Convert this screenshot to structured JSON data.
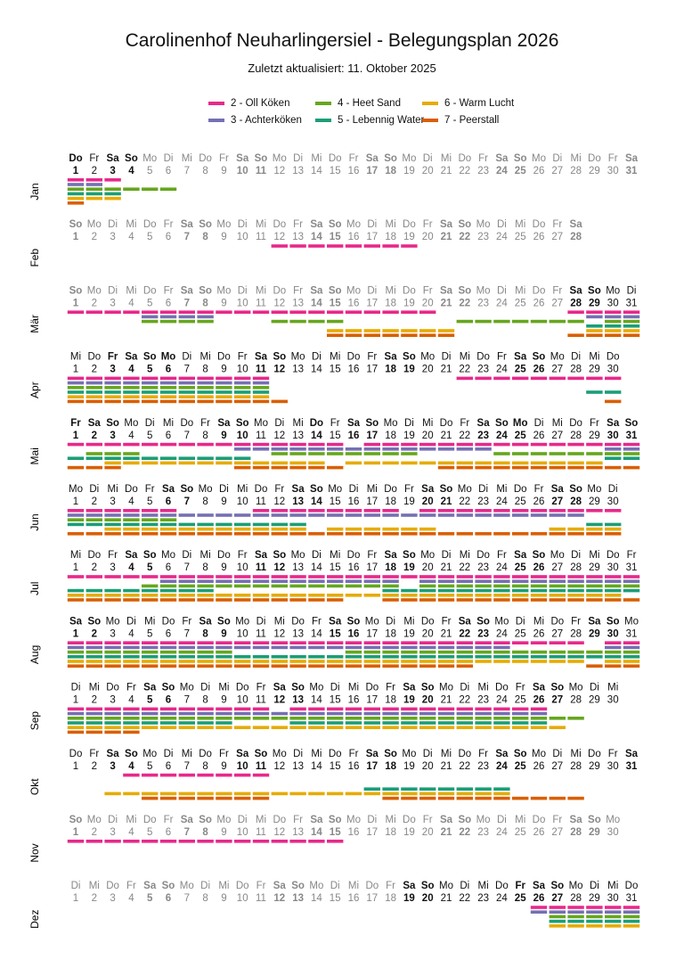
{
  "title": "Carolinenhof Neuharlingersiel - Belegungsplan 2026",
  "subtitle": "Zuletzt aktualisiert: 11. Oktober 2025",
  "chart_data": {
    "type": "gantt",
    "year": 2026,
    "weekdays": [
      "So",
      "Mo",
      "Di",
      "Mi",
      "Do",
      "Fr",
      "Sa"
    ],
    "units": [
      {
        "id": "2",
        "name": "2 - Oll Köken",
        "color": "#e7298a"
      },
      {
        "id": "3",
        "name": "3 - Achterköken",
        "color": "#7570b3"
      },
      {
        "id": "4",
        "name": "4 - Heet Sand",
        "color": "#66a61e"
      },
      {
        "id": "5",
        "name": "5 - Lebennig Water",
        "color": "#1b9e77"
      },
      {
        "id": "6",
        "name": "6 - Warm Lucht",
        "color": "#e6ab02"
      },
      {
        "id": "7",
        "name": "7 - Peerstall",
        "color": "#d95f02"
      }
    ],
    "holidays": [
      [
        1,
        1
      ],
      [
        4,
        3
      ],
      [
        4,
        6
      ],
      [
        5,
        1
      ],
      [
        5,
        14
      ],
      [
        5,
        25
      ],
      [
        12,
        25
      ]
    ],
    "months": [
      {
        "label": "Jan",
        "days": 31,
        "dark_days": [
          [
            1,
            4
          ]
        ],
        "occupied": {
          "2": [
            [
              1,
              3
            ]
          ],
          "3": [
            [
              1,
              2
            ]
          ],
          "4": [
            [
              1,
              6
            ]
          ],
          "5": [
            [
              1,
              3
            ]
          ],
          "6": [
            [
              1,
              3
            ]
          ],
          "7": [
            [
              1,
              1
            ]
          ]
        }
      },
      {
        "label": "Feb",
        "days": 28,
        "dark_days": [],
        "occupied": {
          "2": [
            [
              12,
              19
            ]
          ]
        }
      },
      {
        "label": "Mär",
        "days": 31,
        "dark_days": [
          [
            28,
            31
          ]
        ],
        "occupied": {
          "2": [
            [
              1,
              20
            ],
            [
              28,
              31
            ]
          ],
          "3": [
            [
              5,
              8
            ],
            [
              29,
              31
            ]
          ],
          "4": [
            [
              5,
              8
            ],
            [
              12,
              15
            ],
            [
              22,
              28
            ],
            [
              30,
              31
            ]
          ],
          "5": [
            [
              29,
              31
            ]
          ],
          "6": [
            [
              15,
              21
            ],
            [
              29,
              31
            ]
          ],
          "7": [
            [
              15,
              21
            ],
            [
              28,
              31
            ]
          ]
        }
      },
      {
        "label": "Apr",
        "days": 30,
        "dark_days": [
          [
            1,
            30
          ]
        ],
        "occupied": {
          "2": [
            [
              1,
              11
            ],
            [
              22,
              30
            ]
          ],
          "3": [
            [
              1,
              11
            ]
          ],
          "4": [
            [
              1,
              11
            ]
          ],
          "5": [
            [
              1,
              11
            ],
            [
              29,
              30
            ]
          ],
          "6": [
            [
              1,
              11
            ]
          ],
          "7": [
            [
              1,
              12
            ],
            [
              30,
              30
            ]
          ]
        }
      },
      {
        "label": "Mai",
        "days": 31,
        "dark_days": [
          [
            1,
            31
          ]
        ],
        "occupied": {
          "2": [
            [
              1,
              15
            ],
            [
              17,
              31
            ]
          ],
          "3": [
            [
              10,
              23
            ],
            [
              30,
              31
            ]
          ],
          "4": [
            [
              2,
              4
            ],
            [
              12,
              19
            ],
            [
              24,
              31
            ]
          ],
          "5": [
            [
              1,
              10
            ],
            [
              30,
              31
            ]
          ],
          "6": [
            [
              3,
              14
            ],
            [
              16,
              29
            ]
          ],
          "7": [
            [
              1,
              3
            ],
            [
              10,
              15
            ],
            [
              21,
              31
            ]
          ]
        }
      },
      {
        "label": "Jun",
        "days": 30,
        "dark_days": [
          [
            1,
            30
          ]
        ],
        "occupied": {
          "2": [
            [
              1,
              6
            ],
            [
              11,
              18
            ],
            [
              20,
              30
            ]
          ],
          "3": [
            [
              1,
              28
            ]
          ],
          "4": [
            [
              1,
              6
            ]
          ],
          "5": [
            [
              1,
              13
            ],
            [
              29,
              30
            ]
          ],
          "6": [
            [
              3,
              13
            ],
            [
              15,
              20
            ],
            [
              27,
              30
            ]
          ],
          "7": [
            [
              1,
              30
            ]
          ]
        }
      },
      {
        "label": "Jul",
        "days": 31,
        "dark_days": [
          [
            1,
            31
          ]
        ],
        "occupied": {
          "2": [
            [
              1,
              31
            ]
          ],
          "3": [
            [
              6,
              18
            ],
            [
              20,
              31
            ]
          ],
          "4": [
            [
              5,
              18
            ],
            [
              20,
              31
            ]
          ],
          "5": [
            [
              1,
              8
            ],
            [
              18,
              31
            ]
          ],
          "6": [
            [
              1,
              30
            ]
          ],
          "7": [
            [
              1,
              15
            ],
            [
              18,
              31
            ]
          ]
        }
      },
      {
        "label": "Aug",
        "days": 31,
        "dark_days": [
          [
            1,
            31
          ]
        ],
        "occupied": {
          "2": [
            [
              1,
              28
            ],
            [
              30,
              31
            ]
          ],
          "3": [
            [
              1,
              24
            ],
            [
              30,
              31
            ]
          ],
          "4": [
            [
              1,
              9
            ],
            [
              16,
              31
            ]
          ],
          "5": [
            [
              1,
              31
            ]
          ],
          "6": [
            [
              1,
              28
            ],
            [
              30,
              31
            ]
          ],
          "7": [
            [
              1,
              22
            ],
            [
              29,
              31
            ]
          ]
        }
      },
      {
        "label": "Sep",
        "days": 30,
        "dark_days": [
          [
            1,
            30
          ]
        ],
        "occupied": {
          "2": [
            [
              1,
              11
            ],
            [
              13,
              26
            ]
          ],
          "3": [
            [
              1,
              26
            ]
          ],
          "4": [
            [
              1,
              28
            ]
          ],
          "5": [
            [
              1,
              9
            ],
            [
              13,
              26
            ]
          ],
          "6": [
            [
              1,
              27
            ]
          ],
          "7": [
            [
              1,
              4
            ]
          ]
        }
      },
      {
        "label": "Okt",
        "days": 31,
        "dark_days": [
          [
            1,
            31
          ]
        ],
        "occupied": {
          "2": [
            [
              4,
              11
            ]
          ],
          "5": [
            [
              17,
              24
            ]
          ],
          "6": [
            [
              3,
              24
            ]
          ],
          "7": [
            [
              5,
              11
            ],
            [
              18,
              28
            ]
          ]
        }
      },
      {
        "label": "Nov",
        "days": 30,
        "dark_days": [],
        "occupied": {
          "2": [
            [
              1,
              15
            ]
          ]
        }
      },
      {
        "label": "Dez",
        "days": 31,
        "dark_days": [
          [
            19,
            31
          ]
        ],
        "occupied": {
          "2": [
            [
              26,
              31
            ]
          ],
          "3": [
            [
              26,
              31
            ]
          ],
          "4": [
            [
              27,
              31
            ]
          ],
          "5": [
            [
              27,
              31
            ]
          ],
          "6": [
            [
              27,
              31
            ]
          ]
        }
      }
    ]
  }
}
